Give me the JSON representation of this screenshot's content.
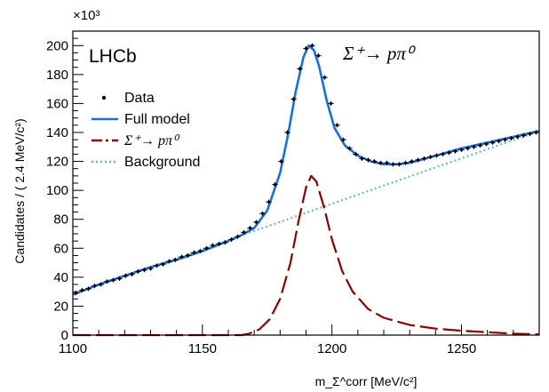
{
  "chart_data": {
    "type": "line",
    "experiment_label": "LHCb",
    "decay_title": "Σ⁺→ pπ⁰",
    "xlabel": "m_Σ^corr [MeV/c²]",
    "ylabel": "Candidates / ( 2.4 MeV/c²)",
    "y_multiplier": "×10³",
    "xlim": [
      1100,
      1280
    ],
    "ylim": [
      0,
      210
    ],
    "x_ticks": [
      1100,
      1150,
      1200,
      1250
    ],
    "y_ticks": [
      0,
      20,
      40,
      60,
      80,
      100,
      120,
      140,
      160,
      180,
      200
    ],
    "legend_position": "top-left",
    "legend": [
      {
        "name": "Data",
        "style": "points",
        "color": "#000000"
      },
      {
        "name": "Full model",
        "style": "solid",
        "color": "#1a6fe0"
      },
      {
        "name": "Σ⁺→ pπ⁰",
        "style": "long-dash-dot",
        "color": "#8b0000"
      },
      {
        "name": "Background",
        "style": "dotted",
        "color": "#66c2a5"
      }
    ],
    "series": [
      {
        "name": "Data",
        "x": [
          1101.2,
          1103.6,
          1106.0,
          1108.4,
          1110.8,
          1113.2,
          1115.6,
          1118.0,
          1120.4,
          1122.8,
          1125.2,
          1127.6,
          1130.0,
          1132.4,
          1134.8,
          1137.2,
          1139.6,
          1142.0,
          1144.4,
          1146.8,
          1149.2,
          1151.6,
          1154.0,
          1156.4,
          1158.8,
          1161.2,
          1163.6,
          1166.0,
          1168.4,
          1170.8,
          1173.2,
          1175.6,
          1178.0,
          1180.4,
          1182.8,
          1185.2,
          1187.6,
          1190.0,
          1192.4,
          1194.8,
          1197.2,
          1199.6,
          1202.0,
          1204.4,
          1206.8,
          1209.2,
          1211.6,
          1214.0,
          1216.4,
          1218.8,
          1221.2,
          1223.6,
          1226.0,
          1228.4,
          1230.8,
          1233.2,
          1235.6,
          1238.0,
          1240.4,
          1242.8,
          1245.2,
          1247.6,
          1250.0,
          1252.4,
          1254.8,
          1257.2,
          1259.6,
          1262.0,
          1264.4,
          1266.8,
          1269.2,
          1271.6,
          1274.0,
          1276.4,
          1278.8
        ],
        "y": [
          29,
          31,
          32,
          34,
          35,
          37,
          38,
          39,
          41,
          42,
          44,
          45,
          46,
          48,
          49,
          51,
          52,
          54,
          55,
          57,
          58,
          60,
          62,
          63,
          64,
          66,
          68,
          71,
          74,
          78,
          84,
          92,
          104,
          120,
          140,
          163,
          184,
          198,
          200,
          193,
          178,
          160,
          145,
          135,
          129,
          125,
          122,
          121,
          120,
          119,
          119,
          118,
          118,
          119,
          120,
          121,
          122,
          123,
          124,
          125,
          126,
          127,
          128,
          129,
          130,
          131,
          132,
          133,
          134,
          135,
          136,
          137,
          138,
          139,
          140
        ],
        "color": "#000000"
      },
      {
        "name": "Full model",
        "x": [
          1100,
          1110,
          1120,
          1130,
          1140,
          1150,
          1160,
          1165,
          1170,
          1175,
          1180,
          1183,
          1186,
          1189,
          1191,
          1193,
          1195,
          1198,
          1201,
          1205,
          1210,
          1215,
          1220,
          1225,
          1230,
          1240,
          1250,
          1260,
          1270,
          1280
        ],
        "y": [
          28,
          35,
          41,
          47,
          52,
          58,
          65,
          69,
          74,
          86,
          112,
          138,
          168,
          192,
          200,
          197,
          186,
          162,
          143,
          131,
          124,
          120,
          118,
          118,
          119,
          124,
          129,
          133,
          137,
          141
        ],
        "color": "#1a6fe0"
      },
      {
        "name": "Σ⁺→ pπ⁰",
        "x": [
          1100,
          1150,
          1160,
          1165,
          1168,
          1172,
          1176,
          1180,
          1184,
          1187,
          1190,
          1192,
          1194,
          1197,
          1200,
          1204,
          1208,
          1214,
          1220,
          1230,
          1240,
          1250,
          1260,
          1270,
          1280
        ],
        "y": [
          0,
          0,
          0,
          0,
          1,
          4,
          11,
          25,
          50,
          78,
          102,
          110,
          106,
          88,
          66,
          44,
          30,
          18,
          12,
          7,
          4.5,
          3,
          2,
          1,
          0.5
        ],
        "color": "#8b0000"
      },
      {
        "name": "Background",
        "x": [
          1100,
          1280
        ],
        "y": [
          28,
          141
        ],
        "color": "#66c2a5"
      }
    ]
  }
}
